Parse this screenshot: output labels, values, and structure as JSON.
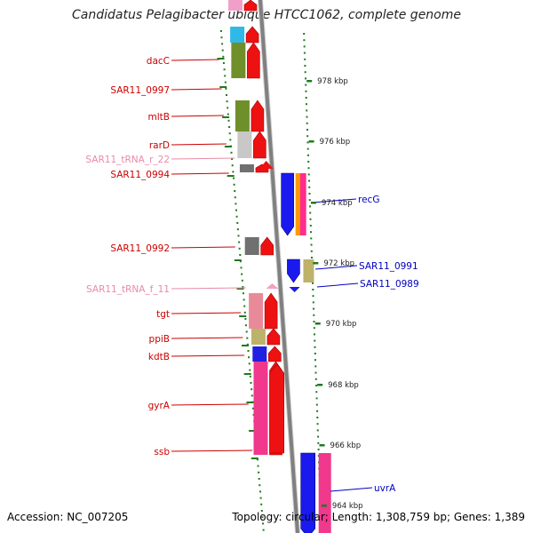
{
  "title": "Candidatus Pelagibacter ubique HTCC1062, complete genome",
  "footer": {
    "accession": "Accession: NC_007205",
    "summary": "Topology: circular; Length: 1,308,759 bp; Genes: 1,389"
  },
  "colors": {
    "forward_label": "#cc0000",
    "rna_label": "#e98aa6",
    "reverse_label": "#0000c0",
    "tick": "#1f7a1f",
    "backbone": "#808080"
  },
  "kbp_marks": [
    "978 kbp",
    "976 kbp",
    "974 kbp",
    "972 kbp",
    "970 kbp",
    "968 kbp",
    "966 kbp",
    "964 kbp"
  ],
  "forward_labels": [
    "dacC",
    "SAR11_0997",
    "mltB",
    "rarD",
    "SAR11_tRNA_r_22",
    "SAR11_0994",
    "SAR11_0992",
    "SAR11_tRNA_f_11",
    "tgt",
    "ppiB",
    "kdtB",
    "gyrA",
    "ssb"
  ],
  "reverse_labels": [
    "recG",
    "SAR11_0991",
    "SAR11_0989",
    "uvrA"
  ]
}
